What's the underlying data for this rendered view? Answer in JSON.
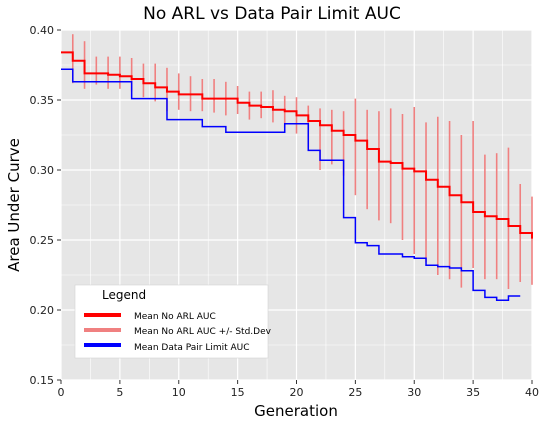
{
  "chart_data": {
    "type": "line",
    "title": "No ARL vs Data Pair Limit AUC",
    "xlabel": "Generation",
    "ylabel": "Area Under Curve",
    "xlim": [
      0,
      40
    ],
    "ylim": [
      0.15,
      0.4
    ],
    "xticks": [
      "0",
      "5",
      "10",
      "15",
      "20",
      "25",
      "30",
      "35",
      "40"
    ],
    "yticks": [
      "0.15",
      "0.20",
      "0.25",
      "0.30",
      "0.35",
      "0.40"
    ],
    "grid": true,
    "legend": {
      "title": "Legend",
      "placement": "bottom-left",
      "entries": [
        "Mean No ARL AUC",
        "Mean No ARL AUC +/- Std.Dev",
        "Mean Data Pair Limit AUC"
      ]
    },
    "colors": {
      "mean_no_arl": "#ff0000",
      "std_dev": "#f08080",
      "data_pair_limit": "#0000ff",
      "plot_bg": "#e6e6e6"
    },
    "series": [
      {
        "name": "Mean No ARL AUC",
        "style": "step",
        "x": [
          0,
          1,
          2,
          3,
          4,
          5,
          6,
          7,
          8,
          9,
          10,
          11,
          12,
          13,
          14,
          15,
          16,
          17,
          18,
          19,
          20,
          21,
          22,
          23,
          24,
          25,
          26,
          27,
          28,
          29,
          30,
          31,
          32,
          33,
          34,
          35,
          36,
          37,
          38,
          39,
          40
        ],
        "y": [
          0.384,
          0.378,
          0.369,
          0.369,
          0.368,
          0.367,
          0.365,
          0.362,
          0.359,
          0.356,
          0.354,
          0.354,
          0.351,
          0.351,
          0.351,
          0.348,
          0.346,
          0.345,
          0.343,
          0.342,
          0.339,
          0.335,
          0.332,
          0.328,
          0.325,
          0.321,
          0.315,
          0.306,
          0.305,
          0.301,
          0.299,
          0.293,
          0.288,
          0.282,
          0.277,
          0.27,
          0.267,
          0.265,
          0.26,
          0.255,
          0.251
        ]
      },
      {
        "name": "Mean No ARL AUC +/- Std.Dev",
        "style": "errorbars",
        "x": [
          1,
          2,
          3,
          4,
          5,
          6,
          7,
          8,
          9,
          10,
          11,
          12,
          13,
          14,
          15,
          16,
          17,
          18,
          19,
          20,
          21,
          22,
          23,
          24,
          25,
          26,
          27,
          28,
          29,
          30,
          31,
          32,
          33,
          34,
          35,
          36,
          37,
          38,
          39,
          40
        ],
        "low": [
          0.362,
          0.358,
          0.361,
          0.358,
          0.358,
          0.356,
          0.352,
          0.349,
          0.342,
          0.343,
          0.342,
          0.342,
          0.341,
          0.339,
          0.34,
          0.336,
          0.337,
          0.334,
          0.33,
          0.326,
          0.316,
          0.3,
          0.304,
          0.296,
          0.282,
          0.272,
          0.264,
          0.262,
          0.25,
          0.24,
          0.234,
          0.225,
          0.222,
          0.216,
          0.23,
          0.222,
          0.222,
          0.215,
          0.22,
          0.218
        ],
        "high": [
          0.397,
          0.392,
          0.381,
          0.381,
          0.381,
          0.38,
          0.376,
          0.376,
          0.373,
          0.369,
          0.367,
          0.365,
          0.365,
          0.363,
          0.36,
          0.356,
          0.356,
          0.357,
          0.353,
          0.352,
          0.346,
          0.344,
          0.343,
          0.342,
          0.351,
          0.343,
          0.342,
          0.344,
          0.34,
          0.345,
          0.334,
          0.338,
          0.335,
          0.325,
          0.335,
          0.311,
          0.312,
          0.316,
          0.29,
          0.281
        ]
      },
      {
        "name": "Mean Data Pair Limit AUC",
        "style": "step",
        "x": [
          0,
          1,
          2,
          3,
          4,
          5,
          6,
          7,
          8,
          9,
          10,
          11,
          12,
          13,
          14,
          15,
          16,
          17,
          18,
          19,
          20,
          21,
          22,
          23,
          24,
          25,
          26,
          27,
          28,
          29,
          30,
          31,
          32,
          33,
          34,
          35,
          36,
          37,
          38,
          39
        ],
        "y": [
          0.372,
          0.363,
          0.363,
          0.363,
          0.363,
          0.363,
          0.351,
          0.351,
          0.351,
          0.336,
          0.336,
          0.336,
          0.331,
          0.331,
          0.327,
          0.327,
          0.327,
          0.327,
          0.327,
          0.333,
          0.333,
          0.314,
          0.307,
          0.307,
          0.266,
          0.248,
          0.246,
          0.24,
          0.24,
          0.238,
          0.237,
          0.232,
          0.231,
          0.23,
          0.228,
          0.214,
          0.209,
          0.207,
          0.21,
          0.21
        ]
      }
    ]
  }
}
